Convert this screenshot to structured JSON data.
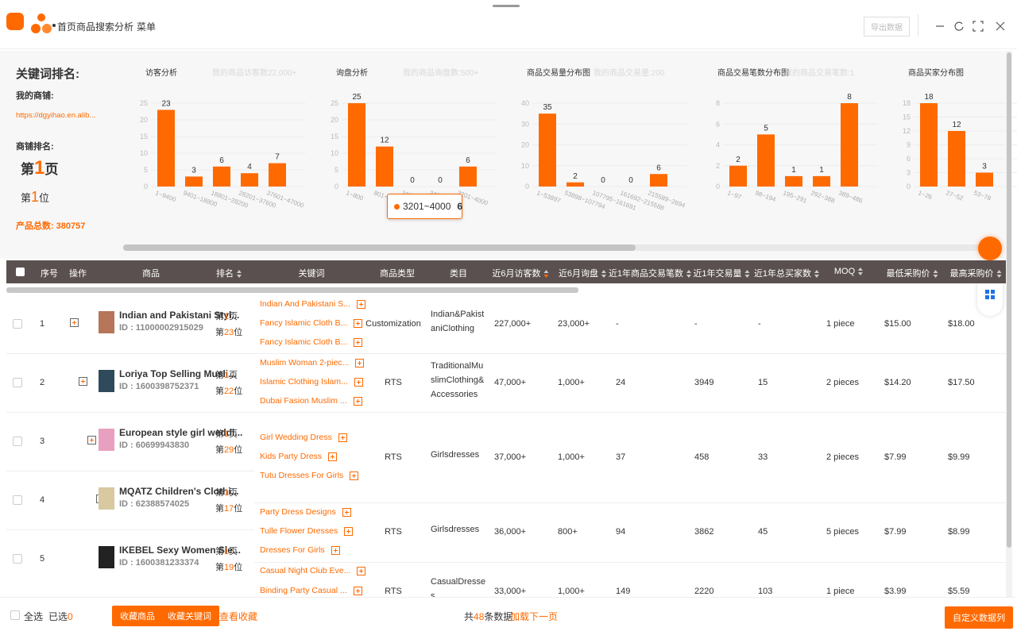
{
  "topbar": {
    "title": "首页商品搜索分析",
    "menu": "菜单",
    "export": "导出数据"
  },
  "summary": {
    "heading": "关键词排名:",
    "shop_label": "我的商铺:",
    "shop_url": "https://dgyihao.en.alib...",
    "rank_label": "商铺排名:",
    "page_prefix": "第",
    "page": 1,
    "page_suffix": "页",
    "position_prefix": "第",
    "position": 1,
    "position_suffix": "位",
    "total_label": "产品总数:",
    "total": 380757
  },
  "chart_data": [
    {
      "type": "bar",
      "title": "访客分析",
      "subtitle": "我的商品访客数22,000+",
      "categories": [
        "1~9400",
        "9401~18800",
        "18801~28200",
        "28201~37600",
        "37601~47000"
      ],
      "values": [
        23,
        3,
        6,
        4,
        7
      ],
      "color": "#ff6a00",
      "ylim": [
        0,
        25
      ],
      "yticks": [
        0,
        5,
        10,
        15,
        20,
        25
      ],
      "grid": true
    },
    {
      "type": "bar",
      "title": "询盘分析",
      "subtitle": "我的商品询盘数:500+",
      "categories": [
        "1~800",
        "801~1600",
        "1601~2400",
        "2401~3200",
        "3201~4000"
      ],
      "values": [
        25,
        12,
        0,
        0,
        6
      ],
      "color": "#ff6a00",
      "ylim": [
        0,
        25
      ],
      "yticks": [
        0,
        5,
        10,
        15,
        20,
        25
      ],
      "grid": true,
      "tooltip": {
        "label": "3201~4000",
        "value": 6
      }
    },
    {
      "type": "bar",
      "title": "商品交易量分布图",
      "subtitle": "我的商品交易量:200",
      "categories": [
        "1~53897",
        "53898~107794",
        "107795~161691",
        "161692~215588",
        "215589~2694"
      ],
      "values": [
        35,
        2,
        0,
        0,
        6
      ],
      "color": "#ff6a00",
      "ylim": [
        0,
        40
      ],
      "yticks": [
        0,
        10,
        20,
        30,
        40
      ],
      "grid": true
    },
    {
      "type": "bar",
      "title": "商品交易笔数分布图",
      "subtitle": "我的商品交易笔数:1",
      "categories": [
        "1~97",
        "98~194",
        "195~291",
        "292~388",
        "389~486"
      ],
      "values": [
        2,
        5,
        1,
        1,
        8
      ],
      "color": "#ff6a00",
      "ylim": [
        0,
        8
      ],
      "yticks": [
        0,
        2,
        4,
        6,
        8
      ],
      "grid": true
    },
    {
      "type": "bar",
      "title": "商品买家分布图",
      "categories": [
        "1~26",
        "27~52",
        "53~78"
      ],
      "values": [
        18,
        12,
        3
      ],
      "color": "#ff6a00",
      "ylim": [
        0,
        18
      ],
      "yticks": [
        0,
        3,
        6,
        9,
        12,
        15,
        18
      ],
      "grid": true
    }
  ],
  "table": {
    "columns": [
      "序号",
      "操作",
      "商品",
      "排名",
      "关键词",
      "商品类型",
      "类目",
      "近6月访客数",
      "近6月询盘",
      "近1年商品交易笔数",
      "近1年交易量",
      "近1年总买家数",
      "MOQ",
      "最低采购价",
      "最高采购价"
    ],
    "rank_labels": {
      "prefix": "第",
      "page": "页",
      "position": "位"
    },
    "rows": [
      {
        "index": 1,
        "name": "Indian and Pakistani Styl...",
        "id": "ID : 11000002915029",
        "rank_page": 1,
        "rank_position": 23,
        "keywords": [
          "Indian And Pakistani S...",
          "Fancy Islamic Cloth B...",
          "Fancy Islamic Cloth B..."
        ],
        "type": "Customization",
        "category": "Indian&PakistaniClothing",
        "visitors": "227,000+",
        "inquiries": "23,000+",
        "trades": "-",
        "volume": "-",
        "buyers": "-",
        "moq": "1 piece",
        "min_price": "$15.00",
        "max_price": "$18.00"
      },
      {
        "index": 2,
        "name": "Loriya Top Selling Musli...",
        "id": "ID : 1600398752371",
        "rank_page": 1,
        "rank_position": 22,
        "keywords": [
          "Muslim Woman 2-piec...",
          "Islamic Clothing Islam...",
          "Dubai Fasion Muslim ..."
        ],
        "type": "RTS",
        "category": "TraditionalMuslimClothing&Accessories",
        "visitors": "47,000+",
        "inquiries": "1,000+",
        "trades": 24,
        "volume": 3949,
        "buyers": 15,
        "moq": "2 pieces",
        "min_price": "$14.20",
        "max_price": "$17.50"
      },
      {
        "index": 3,
        "name": "European style girl weddi...",
        "id": "ID : 60699943830",
        "rank_page": 1,
        "rank_position": 29,
        "keywords": [
          "Girl Wedding Dress",
          "Kids Party Dress",
          "Tutu Dresses For Girls"
        ],
        "type": "RTS",
        "category": "Girlsdresses",
        "visitors": "37,000+",
        "inquiries": "1,000+",
        "trades": 37,
        "volume": 458,
        "buyers": 33,
        "moq": "2 pieces",
        "min_price": "$7.99",
        "max_price": "$9.99"
      },
      {
        "index": 4,
        "name": "MQATZ Children's Clothi...",
        "id": "ID : 62388574025",
        "rank_page": 1,
        "rank_position": 17,
        "keywords": [
          "Party Dress Designs",
          "Tulle Flower Dresses",
          "Dresses For Girls"
        ],
        "type": "RTS",
        "category": "Girlsdresses",
        "visitors": "36,000+",
        "inquiries": "800+",
        "trades": 94,
        "volume": 3862,
        "buyers": 45,
        "moq": "5 pieces",
        "min_price": "$7.99",
        "max_price": "$8.99"
      },
      {
        "index": 5,
        "name": "IKEBEL Sexy Women Sle...",
        "id": "ID : 1600381233374",
        "rank_page": 1,
        "rank_position": 19,
        "keywords": [
          "Casual Night Club Eve...",
          "Binding Party Casual ..."
        ],
        "type": "RTS",
        "category": "CasualDresses",
        "visitors": "33,000+",
        "inquiries": "1,000+",
        "trades": 149,
        "volume": 2220,
        "buyers": 103,
        "moq": "1 piece",
        "min_price": "$3.99",
        "max_price": "$5.59"
      }
    ]
  },
  "footer": {
    "select_all": "全选",
    "selected_label": "已选",
    "selected": 0,
    "fav_products": "收藏商品",
    "fav_keywords": "收藏关键词",
    "view_favs": "查看收藏",
    "total_prefix": "共",
    "total": 48,
    "total_suffix": "条数据",
    "load_more": "加载下一页",
    "custom_columns": "自定义数据列"
  }
}
